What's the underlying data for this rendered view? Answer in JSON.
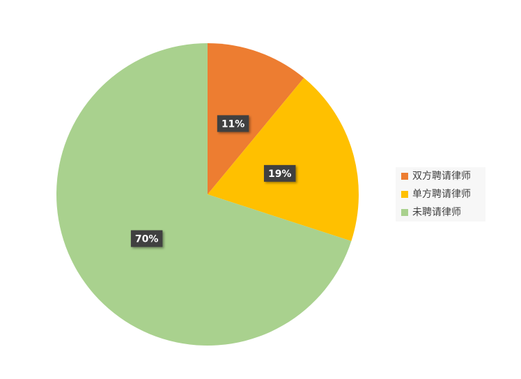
{
  "chart_data": {
    "type": "pie",
    "categories": [
      "双方聘请律师",
      "单方聘请律师",
      "未聘请律师"
    ],
    "values": [
      11,
      19,
      70
    ],
    "value_labels": [
      "11%",
      "19%",
      "70%"
    ],
    "colors": [
      "#ED7D31",
      "#FFC000",
      "#A9D18E"
    ],
    "legend": "right"
  }
}
